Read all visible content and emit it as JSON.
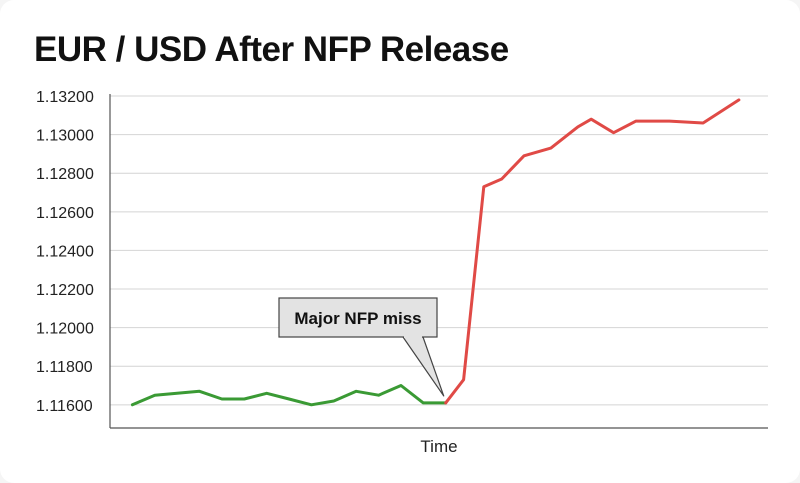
{
  "chart_data": {
    "type": "line",
    "title": "EUR / USD After NFP Release",
    "xlabel": "Time",
    "ylabel": "",
    "ylim": [
      1.1148,
      1.132
    ],
    "yticks": [
      "1.13200",
      "1.13000",
      "1.12800",
      "1.12600",
      "1.12400",
      "1.12200",
      "1.12000",
      "1.11800",
      "1.11600"
    ],
    "ytick_values": [
      1.132,
      1.13,
      1.128,
      1.126,
      1.124,
      1.122,
      1.12,
      1.118,
      1.116
    ],
    "grid": true,
    "series": [
      {
        "color": "#3a9a34",
        "x": [
          1,
          2,
          3,
          4,
          5,
          6,
          7,
          8,
          9,
          10,
          11,
          12,
          13,
          14,
          15
        ],
        "y": [
          1.116,
          1.1165,
          1.1166,
          1.1167,
          1.1163,
          1.1163,
          1.1166,
          1.1163,
          1.116,
          1.1162,
          1.1167,
          1.1165,
          1.117,
          1.1161,
          1.1161
        ]
      },
      {
        "color": "#e04a46",
        "x": [
          15,
          15.8,
          16.7,
          17.5,
          18.5,
          19.7,
          20.9,
          21.5,
          22.5,
          23.5,
          25,
          26.5,
          28.1
        ],
        "y": [
          1.1161,
          1.1173,
          1.1273,
          1.1277,
          1.1289,
          1.1293,
          1.1304,
          1.1308,
          1.1301,
          1.1307,
          1.1307,
          1.1306,
          1.1318
        ]
      }
    ],
    "annotations": [
      {
        "text": "Major NFP miss",
        "x": 15,
        "y": 1.1161
      }
    ]
  }
}
